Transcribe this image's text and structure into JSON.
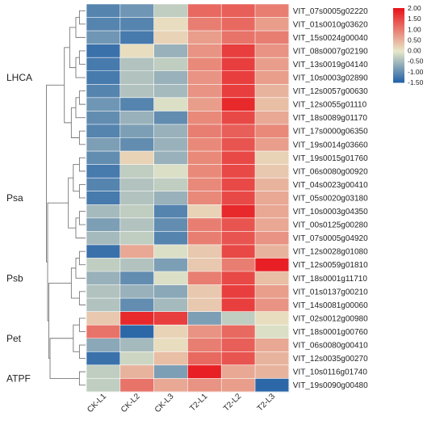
{
  "chart_data": {
    "type": "heatmap",
    "columns": [
      "CK-L1",
      "CK-L2",
      "CK-L3",
      "T2-L1",
      "T2-L2",
      "T2-L3"
    ],
    "rows": [
      "VIT_07s0005g02220",
      "VIT_01s0010g03620",
      "VIT_15s0024g00040",
      "VIT_08s0007g02190",
      "VIT_13s0019g04140",
      "VIT_10s0003g02890",
      "VIT_12s0057g00630",
      "VIT_12s0055g01110",
      "VIT_18s0089g01170",
      "VIT_17s0000g06350",
      "VIT_19s0014g03660",
      "VIT_19s0015g01760",
      "VIT_06s0080g00920",
      "VIT_04s0023g00410",
      "VIT_05s0020g03180",
      "VIT_10s0003g04350",
      "VIT_00s0125g00280",
      "VIT_07s0005g04920",
      "VIT_12s0028g01080",
      "VIT_12s0059g01810",
      "VIT_18s0001g11710",
      "VIT_01s0137g00210",
      "VIT_14s0081g00060",
      "VIT_02s0012g00980",
      "VIT_18s0001g00760",
      "VIT_06s0080g00410",
      "VIT_12s0035g00270",
      "VIT_10s0116g01740",
      "VIT_19s0090g00480"
    ],
    "values": [
      [
        -1.1,
        -0.9,
        -0.3,
        1.2,
        1.3,
        1.0
      ],
      [
        -1.1,
        -1.1,
        0.1,
        1.0,
        1.2,
        0.7
      ],
      [
        -0.9,
        -1.2,
        0.2,
        0.7,
        1.1,
        1.0
      ],
      [
        -1.3,
        0.1,
        -0.6,
        0.8,
        1.6,
        0.8
      ],
      [
        -1.2,
        -0.4,
        -0.3,
        0.9,
        1.6,
        0.7
      ],
      [
        -1.2,
        -0.4,
        -0.6,
        0.8,
        1.6,
        0.7
      ],
      [
        -1.1,
        -0.4,
        -0.5,
        0.8,
        1.6,
        0.5
      ],
      [
        -0.9,
        -1.1,
        -0.1,
        0.7,
        1.8,
        0.4
      ],
      [
        -1.0,
        -0.6,
        -1.0,
        0.9,
        1.5,
        0.6
      ],
      [
        -1.1,
        -0.8,
        -0.6,
        1.0,
        1.3,
        0.9
      ],
      [
        -0.8,
        -1.0,
        -0.6,
        0.9,
        1.4,
        0.7
      ],
      [
        -1.0,
        0.2,
        -0.6,
        0.9,
        1.5,
        0.2
      ],
      [
        -1.2,
        -0.3,
        -0.1,
        0.9,
        1.5,
        0.3
      ],
      [
        -1.1,
        -0.4,
        -0.3,
        0.9,
        1.5,
        0.5
      ],
      [
        -1.2,
        -0.4,
        -0.6,
        0.9,
        1.5,
        0.6
      ],
      [
        -0.5,
        -0.3,
        -1.1,
        0.2,
        1.8,
        0.6
      ],
      [
        -0.8,
        -0.4,
        -1.0,
        1.0,
        1.4,
        0.6
      ],
      [
        -0.5,
        -0.3,
        -1.1,
        1.0,
        1.4,
        0.8
      ],
      [
        -1.3,
        0.6,
        -0.1,
        0.3,
        1.5,
        0.5
      ],
      [
        -0.3,
        -0.4,
        -0.8,
        0.3,
        1.0,
        1.9
      ],
      [
        -0.6,
        -1.0,
        -0.1,
        1.0,
        1.5,
        0.4
      ],
      [
        -0.4,
        -0.6,
        -0.7,
        0.3,
        1.6,
        0.7
      ],
      [
        -0.4,
        -1.0,
        -0.5,
        0.3,
        1.6,
        0.8
      ],
      [
        0.3,
        1.8,
        1.6,
        -0.8,
        -0.3,
        0.1
      ],
      [
        1.1,
        -1.4,
        0.2,
        0.8,
        1.2,
        -0.1
      ],
      [
        -0.7,
        -0.5,
        0.1,
        1.0,
        1.3,
        0.6
      ],
      [
        -1.3,
        -0.2,
        0.4,
        1.2,
        1.4,
        0.5
      ],
      [
        -0.3,
        0.5,
        -0.8,
        1.9,
        0.6,
        0.5
      ],
      [
        -0.3,
        1.1,
        0.6,
        0.8,
        0.7,
        -1.4
      ]
    ],
    "row_groups": [
      {
        "label": "LHCA",
        "start": 0,
        "end": 10
      },
      {
        "label": "Psa",
        "start": 11,
        "end": 17
      },
      {
        "label": "Psb",
        "start": 18,
        "end": 22
      },
      {
        "label": "Pet",
        "start": 23,
        "end": 26
      },
      {
        "label": "ATPF",
        "start": 27,
        "end": 28
      }
    ],
    "color_scale": {
      "min": -1.5,
      "max": 2.0,
      "ticks": [
        "2.00",
        "1.50",
        "1.00",
        "0.50",
        "0.00",
        "-0.50",
        "-1.00",
        "-1.50"
      ],
      "stops": [
        {
          "value": -1.5,
          "color": "#1f5fa6"
        },
        {
          "value": 0.0,
          "color": "#e8e8c8"
        },
        {
          "value": 2.0,
          "color": "#e8141b"
        }
      ]
    },
    "legend_position": "top-right"
  }
}
